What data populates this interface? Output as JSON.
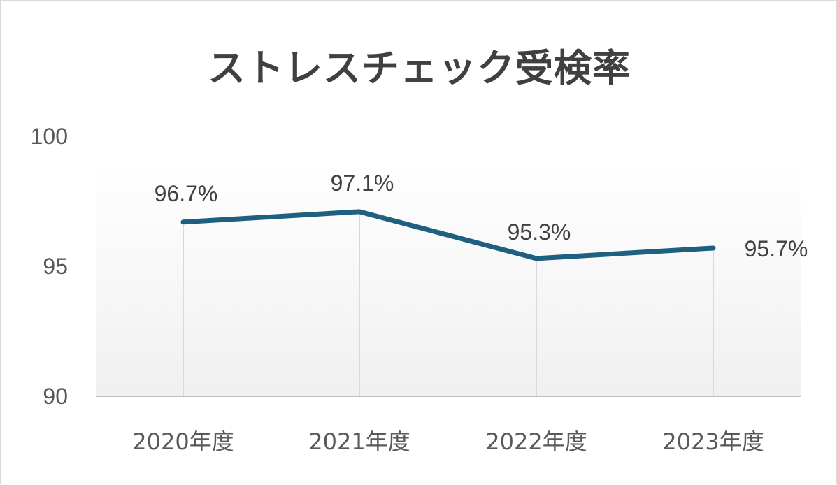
{
  "chart_data": {
    "type": "line",
    "title": "ストレスチェック受検率",
    "categories": [
      "2020年度",
      "2021年度",
      "2022年度",
      "2023年度"
    ],
    "series": [
      {
        "values": [
          96.7,
          97.1,
          95.3,
          95.7
        ],
        "color": "#1f5f7f"
      }
    ],
    "data_labels": [
      "96.7%",
      "97.1%",
      "95.3%",
      "95.7%"
    ],
    "yticks": [
      "100",
      "95",
      "90"
    ],
    "ylim": [
      90,
      100
    ],
    "xlabel": "",
    "ylabel": "",
    "grid": false,
    "drop_lines": true,
    "legend": "none",
    "colors": {
      "line": "#1f5f7f",
      "drop_line": "#d9d9d9",
      "axis": "#bfbfbf",
      "text": "#595959"
    }
  }
}
